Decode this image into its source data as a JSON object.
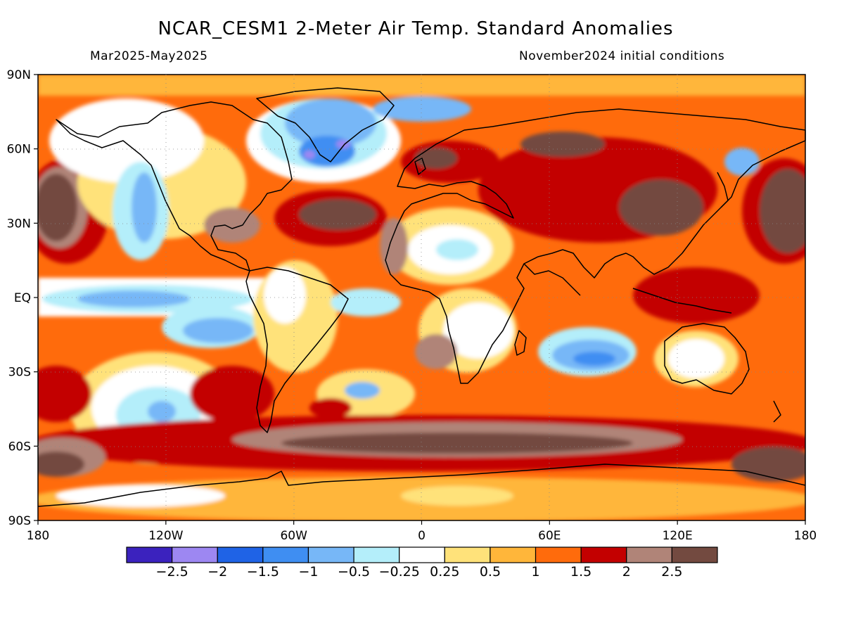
{
  "header": {
    "title": "NCAR_CESM1 2-Meter Air Temp. Standard Anomalies",
    "period": "Mar2025-May2025",
    "init": "November2024 initial conditions"
  },
  "map": {
    "lat_labels": [
      "90N",
      "60N",
      "30N",
      "EQ",
      "30S",
      "60S",
      "90S"
    ],
    "lon_labels": [
      "180",
      "120W",
      "60W",
      "0",
      "60E",
      "120E",
      "180"
    ]
  },
  "colorbar": {
    "colors": [
      "#3b22be",
      "#9d87f2",
      "#1f63e6",
      "#3f8ef2",
      "#77b7f7",
      "#b4eefa",
      "#ffffff",
      "#ffe27a",
      "#ffb63a",
      "#ff6b0c",
      "#c30000",
      "#b08478",
      "#734a40"
    ],
    "labels": [
      "-2.5",
      "-2",
      "-1.5",
      "-1",
      "-0.5",
      "-0.25",
      "0.25",
      "0.5",
      "1",
      "1.5",
      "2",
      "2.5"
    ]
  }
}
